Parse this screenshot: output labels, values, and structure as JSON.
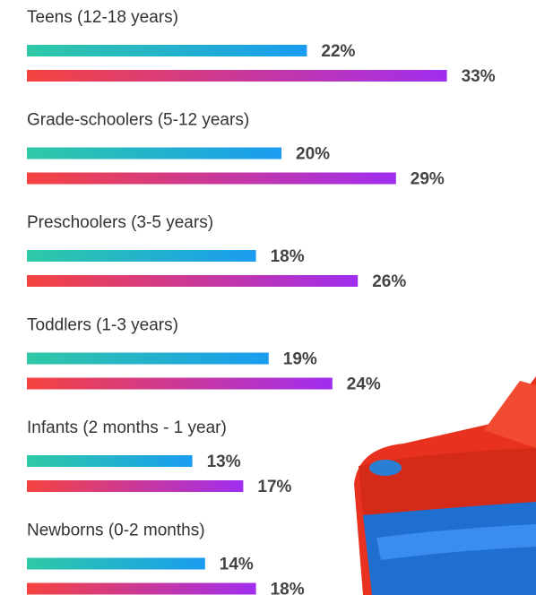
{
  "chart_data": {
    "type": "hbar-pair",
    "categories": [
      "Teens (12-18 years)",
      "Grade-schoolers (5-12 years)",
      "Preschoolers (3-5 years)",
      "Toddlers (1-3 years)",
      "Infants (2 months - 1 year)",
      "Newborns (0-2 months)"
    ],
    "series": [
      {
        "gradient": [
          "#2ec9a6",
          "#1a9cf0"
        ],
        "values": [
          22,
          20,
          18,
          19,
          13,
          14
        ],
        "value_labels": [
          "22%",
          "20%",
          "18%",
          "19%",
          "13%",
          "14%"
        ]
      },
      {
        "gradient": [
          "#f5433f",
          "#a02ef0"
        ],
        "values": [
          33,
          29,
          26,
          24,
          17,
          18
        ],
        "value_labels": [
          "33%",
          "29%",
          "26%",
          "24%",
          "17%",
          "18%"
        ]
      }
    ]
  }
}
